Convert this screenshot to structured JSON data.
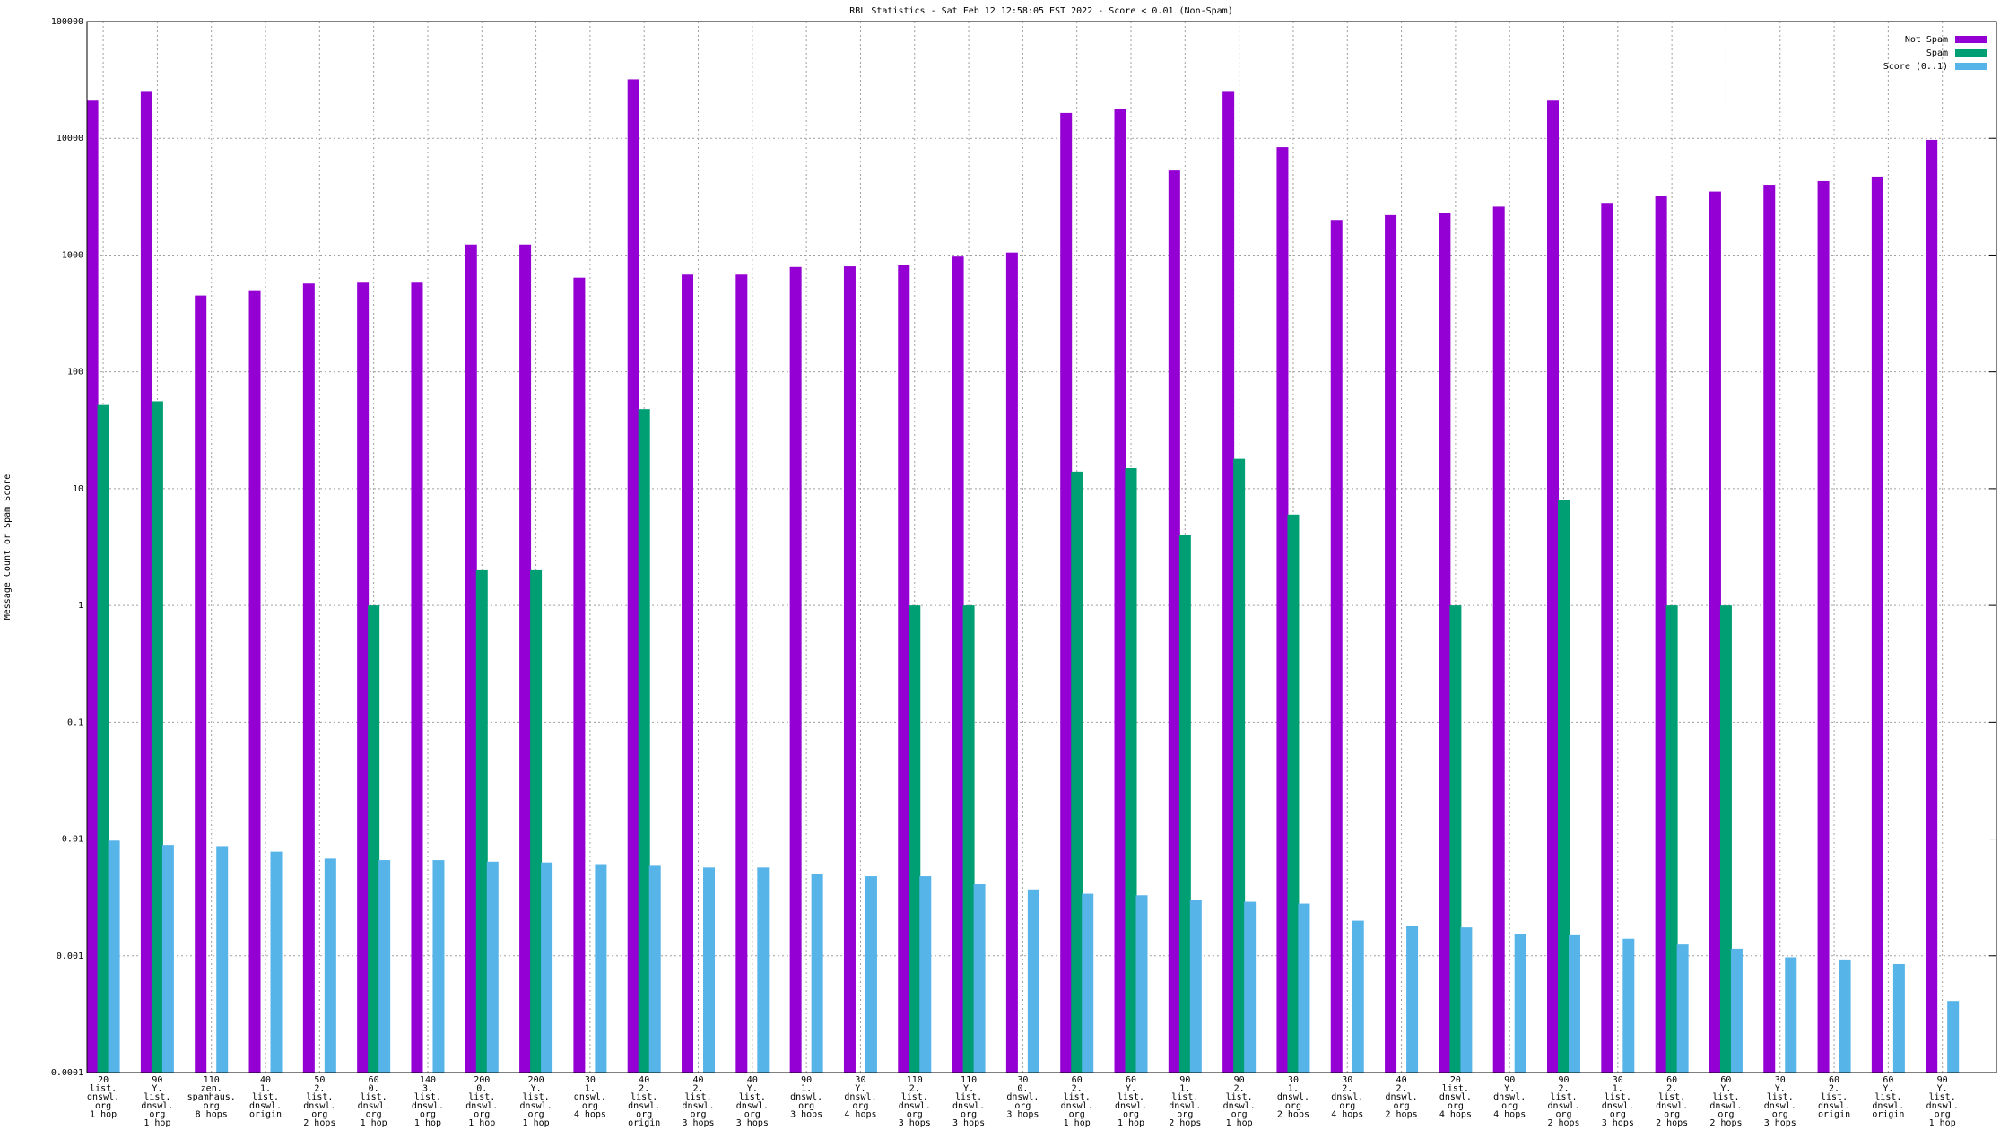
{
  "chart_data": {
    "type": "bar",
    "title": "RBL Statistics - Sat Feb 12 12:58:05 EST 2022 - Score < 0.01 (Non-Spam)",
    "y_label": "Message Count or Spam Score",
    "log_scale": true,
    "grid": true,
    "legend": "top right",
    "categories": [
      [
        "20",
        "list.",
        "dnswl.",
        "org",
        "1 hop"
      ],
      [
        "90",
        "Y.",
        "list.",
        "dnswl.",
        "org",
        "1 hop"
      ],
      [
        "110",
        "zen.",
        "spamhaus.",
        "org",
        "8 hops"
      ],
      [
        "40",
        "1.",
        "list.",
        "dnswl.",
        "origin"
      ],
      [
        "50",
        "2.",
        "list.",
        "dnswl.",
        "org",
        "2 hops"
      ],
      [
        "60",
        "0.",
        "list.",
        "dnswl.",
        "org",
        "1 hop"
      ],
      [
        "140",
        "3.",
        "list.",
        "dnswl.",
        "org",
        "1 hop"
      ],
      [
        "200",
        "0.",
        "list.",
        "dnswl.",
        "org",
        "1 hop"
      ],
      [
        "200",
        "Y.",
        "list.",
        "dnswl.",
        "org",
        "1 hop"
      ],
      [
        "30",
        "1.",
        "dnswl.",
        "org",
        "4 hops"
      ],
      [
        "40",
        "2.",
        "list.",
        "dnswl.",
        "org",
        "origin"
      ],
      [
        "40",
        "2.",
        "list.",
        "dnswl.",
        "org",
        "3 hops"
      ],
      [
        "40",
        "Y.",
        "list.",
        "dnswl.",
        "org",
        "3 hops"
      ],
      [
        "90",
        "1.",
        "dnswl.",
        "org",
        "3 hops"
      ],
      [
        "30",
        "Y.",
        "dnswl.",
        "org",
        "4 hops"
      ],
      [
        "110",
        "2.",
        "list.",
        "dnswl.",
        "org",
        "3 hops"
      ],
      [
        "110",
        "Y.",
        "list.",
        "dnswl.",
        "org",
        "3 hops"
      ],
      [
        "30",
        "0.",
        "dnswl.",
        "org",
        "3 hops"
      ],
      [
        "60",
        "2.",
        "list.",
        "dnswl.",
        "org",
        "1 hop"
      ],
      [
        "60",
        "Y.",
        "list.",
        "dnswl.",
        "org",
        "1 hop"
      ],
      [
        "90",
        "1.",
        "list.",
        "dnswl.",
        "org",
        "2 hops"
      ],
      [
        "90",
        "2.",
        "list.",
        "dnswl.",
        "org",
        "1 hop"
      ],
      [
        "30",
        "1.",
        "dnswl.",
        "org",
        "2 hops"
      ],
      [
        "30",
        "2.",
        "dnswl.",
        "org",
        "4 hops"
      ],
      [
        "40",
        "2.",
        "dnswl.",
        "org",
        "2 hops"
      ],
      [
        "20",
        "list.",
        "dnswl.",
        "org",
        "4 hops"
      ],
      [
        "90",
        "Y.",
        "dnswl.",
        "org",
        "4 hops"
      ],
      [
        "90",
        "2.",
        "list.",
        "dnswl.",
        "org",
        "2 hops"
      ],
      [
        "30",
        "1.",
        "list.",
        "dnswl.",
        "org",
        "3 hops"
      ],
      [
        "60",
        "2.",
        "list.",
        "dnswl.",
        "org",
        "2 hops"
      ],
      [
        "60",
        "Y.",
        "list.",
        "dnswl.",
        "org",
        "2 hops"
      ],
      [
        "30",
        "Y.",
        "list.",
        "dnswl.",
        "org",
        "3 hops"
      ],
      [
        "60",
        "2.",
        "list.",
        "dnswl.",
        "origin"
      ],
      [
        "60",
        "Y.",
        "list.",
        "dnswl.",
        "origin"
      ],
      [
        "90",
        "Y.",
        "list.",
        "dnswl.",
        "org",
        "1 hop"
      ]
    ],
    "series": [
      {
        "name": "Not Spam",
        "color": "#9400d3",
        "values": [
          21000,
          25000,
          450,
          500,
          570,
          580,
          580,
          1230,
          1230,
          640,
          32000,
          680,
          680,
          790,
          800,
          820,
          970,
          1050,
          16500,
          18000,
          5300,
          25000,
          8400,
          2000,
          2200,
          2300,
          2600,
          21000,
          2800,
          3200,
          3500,
          4000,
          4300,
          4700,
          9700
        ]
      },
      {
        "name": "Spam",
        "color": "#009e73",
        "values": [
          52,
          56,
          null,
          null,
          null,
          1,
          null,
          2,
          2,
          null,
          48,
          null,
          null,
          null,
          null,
          1,
          1,
          null,
          14,
          15,
          4,
          18,
          6,
          null,
          null,
          1,
          null,
          8,
          null,
          1,
          1,
          null,
          null,
          null,
          null
        ]
      },
      {
        "name": "Score (0..1)",
        "color": "#56b4e9",
        "values": [
          0.0097,
          0.0089,
          0.0087,
          0.0078,
          0.0068,
          0.0066,
          0.0066,
          0.0064,
          0.0063,
          0.0061,
          0.0059,
          0.0057,
          0.0057,
          0.005,
          0.0048,
          0.0048,
          0.0041,
          0.0037,
          0.0034,
          0.0033,
          0.003,
          0.0029,
          0.0028,
          0.002,
          0.0018,
          0.00175,
          0.00155,
          0.0015,
          0.0014,
          0.00125,
          0.00115,
          0.00097,
          0.00093,
          0.00085,
          0.00041
        ]
      }
    ],
    "ylim": [
      0.0001,
      100000
    ],
    "yticks": [
      0.0001,
      0.001,
      0.01,
      0.1,
      1,
      10,
      100,
      1000,
      10000,
      100000
    ]
  }
}
